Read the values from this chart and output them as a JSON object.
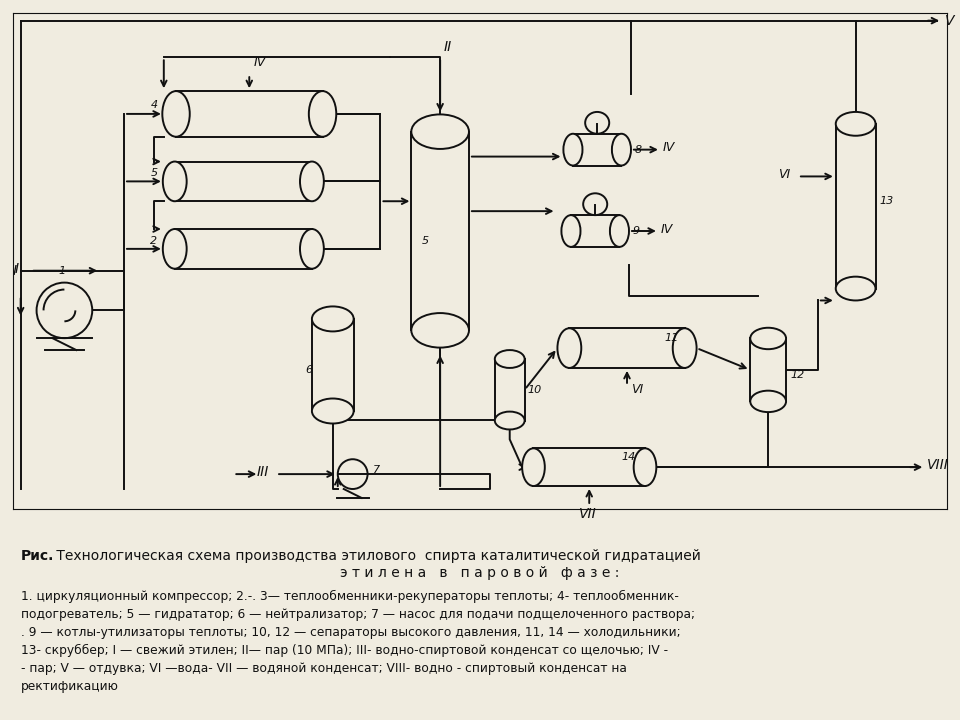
{
  "bg_color": "#f0ece0",
  "line_color": "#111111",
  "title_bold": "Рис.",
  "title_rest": " Технологическая схема производства этилового  спирта каталитической гидратацией",
  "title_line2": "э т и л е н а   в   п а р о в о й   ф а з е :",
  "caption_lines": [
    "1. циркуляционный компрессор; 2.-. 3— теплообменники-рекуператоры теплоты; 4- теплообменник-",
    "подогреватель; 5 — гидрататор; 6 — нейтрализатор; 7 — насос для подачи подщелоченного раствора;",
    ". 9 — котлы-утилизаторы теплоты; 10, 12 — сепараторы высокого давления, 11, 14 — холодильники;",
    "13- скруббер; I — свежий этилен; II— пар (10 МПа); III- водно-спиртовой конденсат со щелочью; IV -",
    "- пар; V — отдувка; VI —вода- VII — водяной конденсат; VIII- водно - спиртовый конденсат на",
    "ректификацию"
  ]
}
